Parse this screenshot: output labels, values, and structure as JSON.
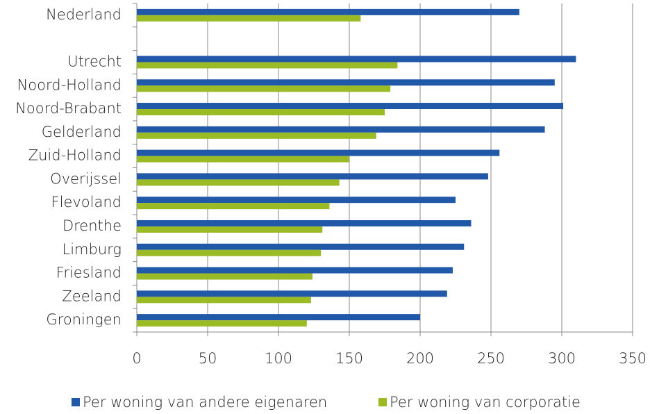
{
  "chart_data": {
    "type": "bar",
    "orientation": "horizontal",
    "categories": [
      "Nederland",
      null,
      "Utrecht",
      "Noord-Holland",
      "Noord-Brabant",
      "Gelderland",
      "Zuid-Holland",
      "Overijssel",
      "Flevoland",
      "Drenthe",
      "Limburg",
      "Friesland",
      "Zeeland",
      "Groningen"
    ],
    "series": [
      {
        "name": "Per woning van andere eigenaren",
        "color": "#2158a8",
        "values": [
          270,
          null,
          310,
          295,
          301,
          288,
          256,
          248,
          225,
          236,
          231,
          223,
          219,
          200
        ]
      },
      {
        "name": "Per woning van corporatie",
        "color": "#9bbb26",
        "values": [
          158,
          null,
          184,
          179,
          175,
          169,
          150,
          143,
          136,
          131,
          130,
          124,
          123,
          120
        ]
      }
    ],
    "xlim": [
      0,
      350
    ],
    "xticks": [
      0,
      50,
      100,
      150,
      200,
      250,
      300,
      350
    ],
    "grid": true,
    "legend": "bottom"
  }
}
